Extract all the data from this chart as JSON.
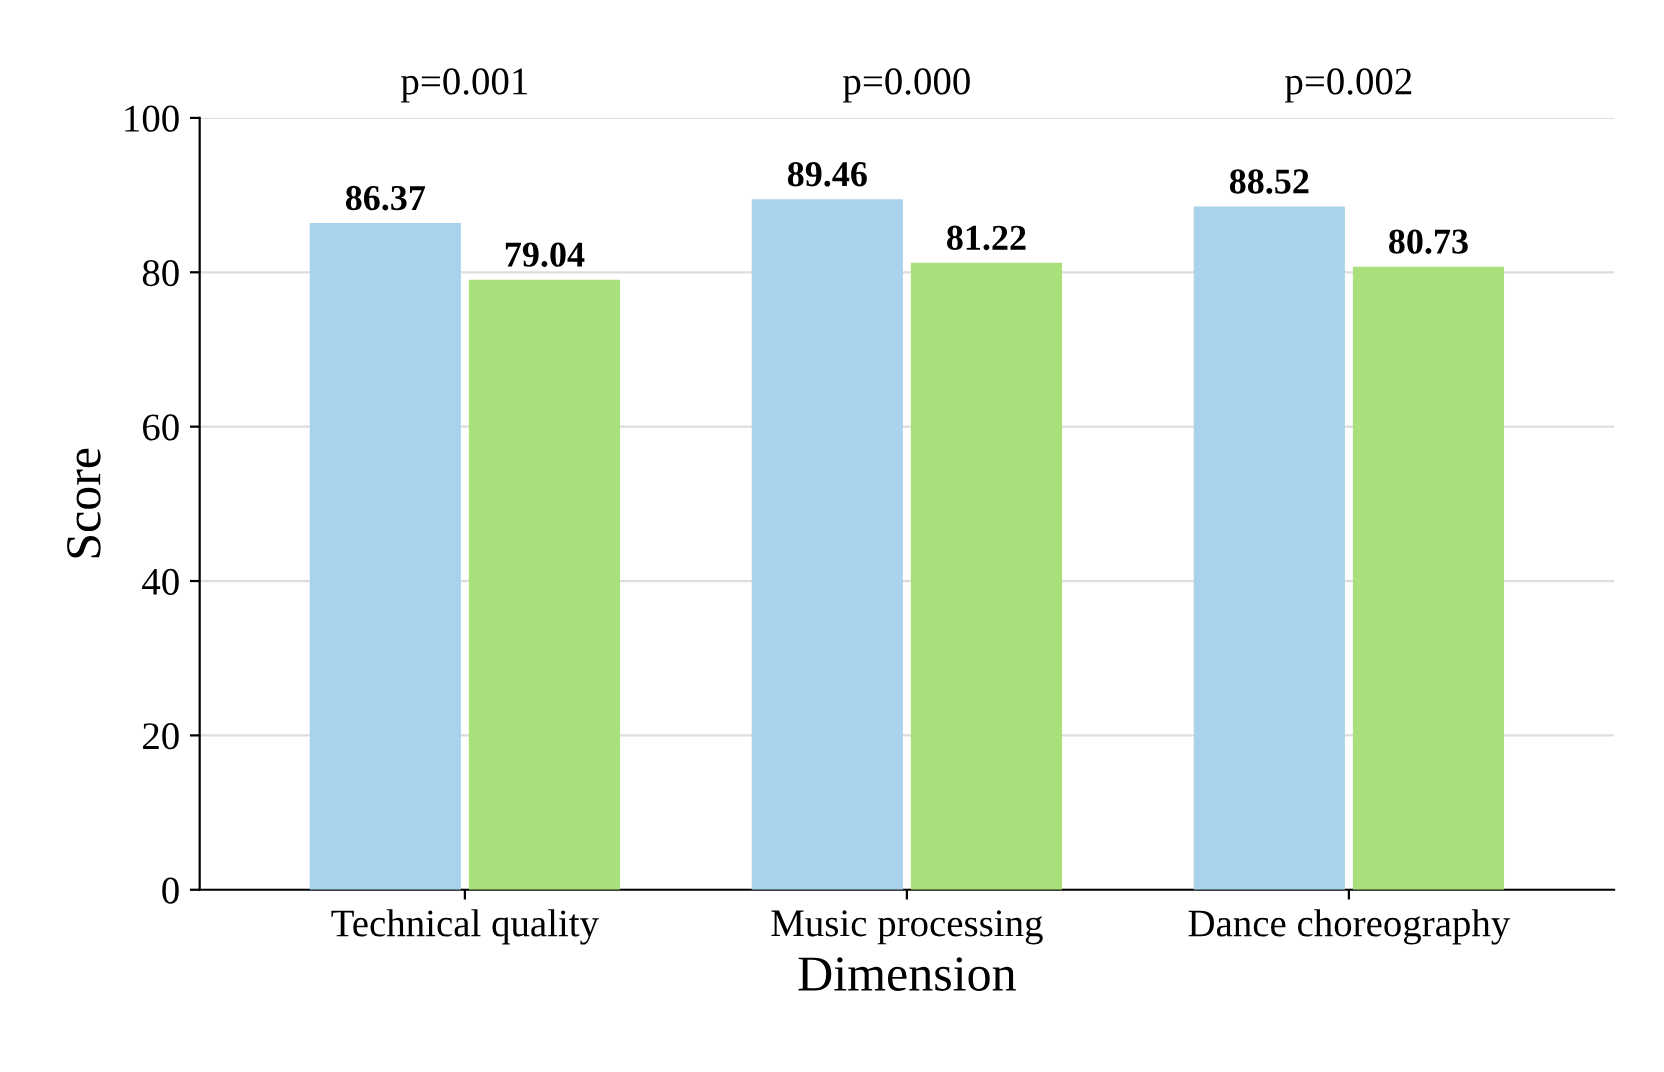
{
  "chart_data": {
    "type": "bar",
    "xlabel": "Dimension",
    "ylabel": "Score",
    "categories": [
      "Technical quality",
      "Music processing",
      "Dance choreography"
    ],
    "series": [
      {
        "color": "#a9d3ec",
        "values": [
          86.37,
          89.46,
          88.52
        ]
      },
      {
        "color": "#a9e07c",
        "values": [
          79.04,
          81.22,
          80.73
        ]
      }
    ],
    "ylim": [
      0,
      100
    ],
    "yticks": [
      0,
      20,
      40,
      60,
      80,
      100
    ],
    "grid": "y",
    "data_labels": true,
    "annotations": [
      "p=0.001",
      "p=0.000",
      "p=0.002"
    ]
  }
}
